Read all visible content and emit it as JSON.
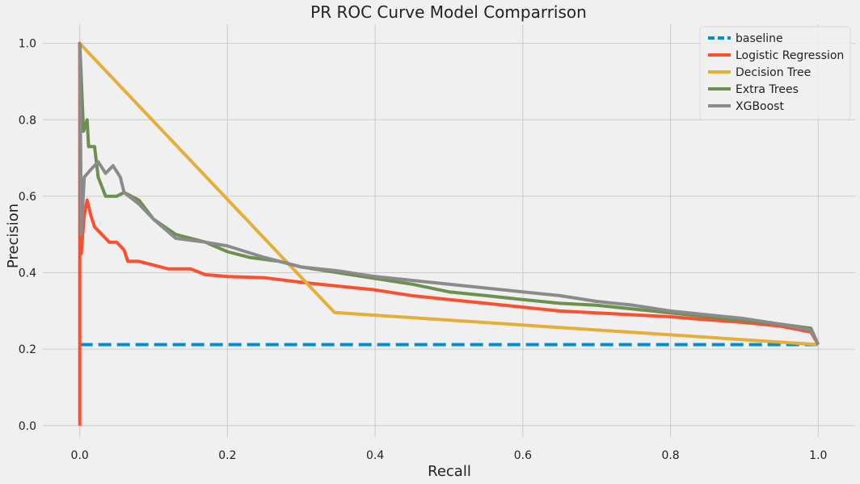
{
  "chart_data": {
    "type": "line",
    "title": "PR ROC Curve Model Comparrison",
    "xlabel": "Recall",
    "ylabel": "Precision",
    "xlim": [
      -0.05,
      1.05
    ],
    "ylim": [
      -0.03,
      1.05
    ],
    "xticks": [
      0.0,
      0.2,
      0.4,
      0.6,
      0.8,
      1.0
    ],
    "xtick_labels": [
      "0.0",
      "0.2",
      "0.4",
      "0.6",
      "0.8",
      "1.0"
    ],
    "yticks": [
      0.0,
      0.2,
      0.4,
      0.6,
      0.8,
      1.0
    ],
    "ytick_labels": [
      "0.0",
      "0.2",
      "0.4",
      "0.6",
      "0.8",
      "1.0"
    ],
    "grid": true,
    "legend_position": "top-right",
    "series": [
      {
        "name": "baseline",
        "color": "#008fd5",
        "dashed": true,
        "points": [
          [
            0.0,
            0.212
          ],
          [
            1.0,
            0.212
          ]
        ]
      },
      {
        "name": "Logistic Regression",
        "color": "#fc4f30",
        "dashed": false,
        "points": [
          [
            0.0,
            0.0
          ],
          [
            0.0,
            1.0
          ],
          [
            0.002,
            0.45
          ],
          [
            0.004,
            0.5
          ],
          [
            0.006,
            0.55
          ],
          [
            0.01,
            0.59
          ],
          [
            0.015,
            0.55
          ],
          [
            0.02,
            0.52
          ],
          [
            0.03,
            0.5
          ],
          [
            0.04,
            0.48
          ],
          [
            0.05,
            0.48
          ],
          [
            0.06,
            0.46
          ],
          [
            0.065,
            0.43
          ],
          [
            0.08,
            0.43
          ],
          [
            0.1,
            0.42
          ],
          [
            0.12,
            0.41
          ],
          [
            0.15,
            0.41
          ],
          [
            0.17,
            0.395
          ],
          [
            0.2,
            0.39
          ],
          [
            0.25,
            0.387
          ],
          [
            0.3,
            0.375
          ],
          [
            0.35,
            0.365
          ],
          [
            0.4,
            0.355
          ],
          [
            0.45,
            0.34
          ],
          [
            0.5,
            0.33
          ],
          [
            0.55,
            0.32
          ],
          [
            0.6,
            0.31
          ],
          [
            0.65,
            0.3
          ],
          [
            0.7,
            0.295
          ],
          [
            0.75,
            0.29
          ],
          [
            0.8,
            0.285
          ],
          [
            0.85,
            0.277
          ],
          [
            0.9,
            0.27
          ],
          [
            0.95,
            0.26
          ],
          [
            0.99,
            0.245
          ],
          [
            1.0,
            0.212
          ]
        ]
      },
      {
        "name": "Decision Tree",
        "color": "#e5ae38",
        "dashed": false,
        "points": [
          [
            0.0,
            1.0
          ],
          [
            0.345,
            0.296
          ],
          [
            1.0,
            0.212
          ]
        ]
      },
      {
        "name": "Extra Trees",
        "color": "#6d904f",
        "dashed": false,
        "points": [
          [
            0.0,
            1.0
          ],
          [
            0.005,
            0.77
          ],
          [
            0.01,
            0.8
          ],
          [
            0.012,
            0.73
          ],
          [
            0.02,
            0.73
          ],
          [
            0.025,
            0.65
          ],
          [
            0.035,
            0.6
          ],
          [
            0.05,
            0.6
          ],
          [
            0.06,
            0.61
          ],
          [
            0.08,
            0.59
          ],
          [
            0.1,
            0.54
          ],
          [
            0.13,
            0.5
          ],
          [
            0.17,
            0.48
          ],
          [
            0.2,
            0.455
          ],
          [
            0.23,
            0.44
          ],
          [
            0.27,
            0.43
          ],
          [
            0.3,
            0.415
          ],
          [
            0.35,
            0.4
          ],
          [
            0.4,
            0.385
          ],
          [
            0.45,
            0.37
          ],
          [
            0.5,
            0.35
          ],
          [
            0.55,
            0.34
          ],
          [
            0.6,
            0.33
          ],
          [
            0.65,
            0.32
          ],
          [
            0.7,
            0.315
          ],
          [
            0.75,
            0.305
          ],
          [
            0.8,
            0.295
          ],
          [
            0.85,
            0.285
          ],
          [
            0.9,
            0.275
          ],
          [
            0.95,
            0.265
          ],
          [
            0.99,
            0.255
          ],
          [
            1.0,
            0.212
          ]
        ]
      },
      {
        "name": "XGBoost",
        "color": "#8b8b8b",
        "dashed": false,
        "points": [
          [
            0.0,
            1.0
          ],
          [
            0.002,
            0.5
          ],
          [
            0.006,
            0.65
          ],
          [
            0.015,
            0.67
          ],
          [
            0.025,
            0.69
          ],
          [
            0.035,
            0.66
          ],
          [
            0.045,
            0.68
          ],
          [
            0.055,
            0.65
          ],
          [
            0.06,
            0.61
          ],
          [
            0.08,
            0.58
          ],
          [
            0.1,
            0.54
          ],
          [
            0.13,
            0.49
          ],
          [
            0.17,
            0.48
          ],
          [
            0.2,
            0.47
          ],
          [
            0.25,
            0.44
          ],
          [
            0.3,
            0.415
          ],
          [
            0.35,
            0.405
          ],
          [
            0.4,
            0.39
          ],
          [
            0.45,
            0.38
          ],
          [
            0.5,
            0.37
          ],
          [
            0.55,
            0.36
          ],
          [
            0.6,
            0.35
          ],
          [
            0.65,
            0.34
          ],
          [
            0.7,
            0.325
          ],
          [
            0.75,
            0.315
          ],
          [
            0.8,
            0.3
          ],
          [
            0.85,
            0.29
          ],
          [
            0.9,
            0.28
          ],
          [
            0.95,
            0.265
          ],
          [
            0.99,
            0.25
          ],
          [
            1.0,
            0.212
          ]
        ]
      }
    ]
  }
}
